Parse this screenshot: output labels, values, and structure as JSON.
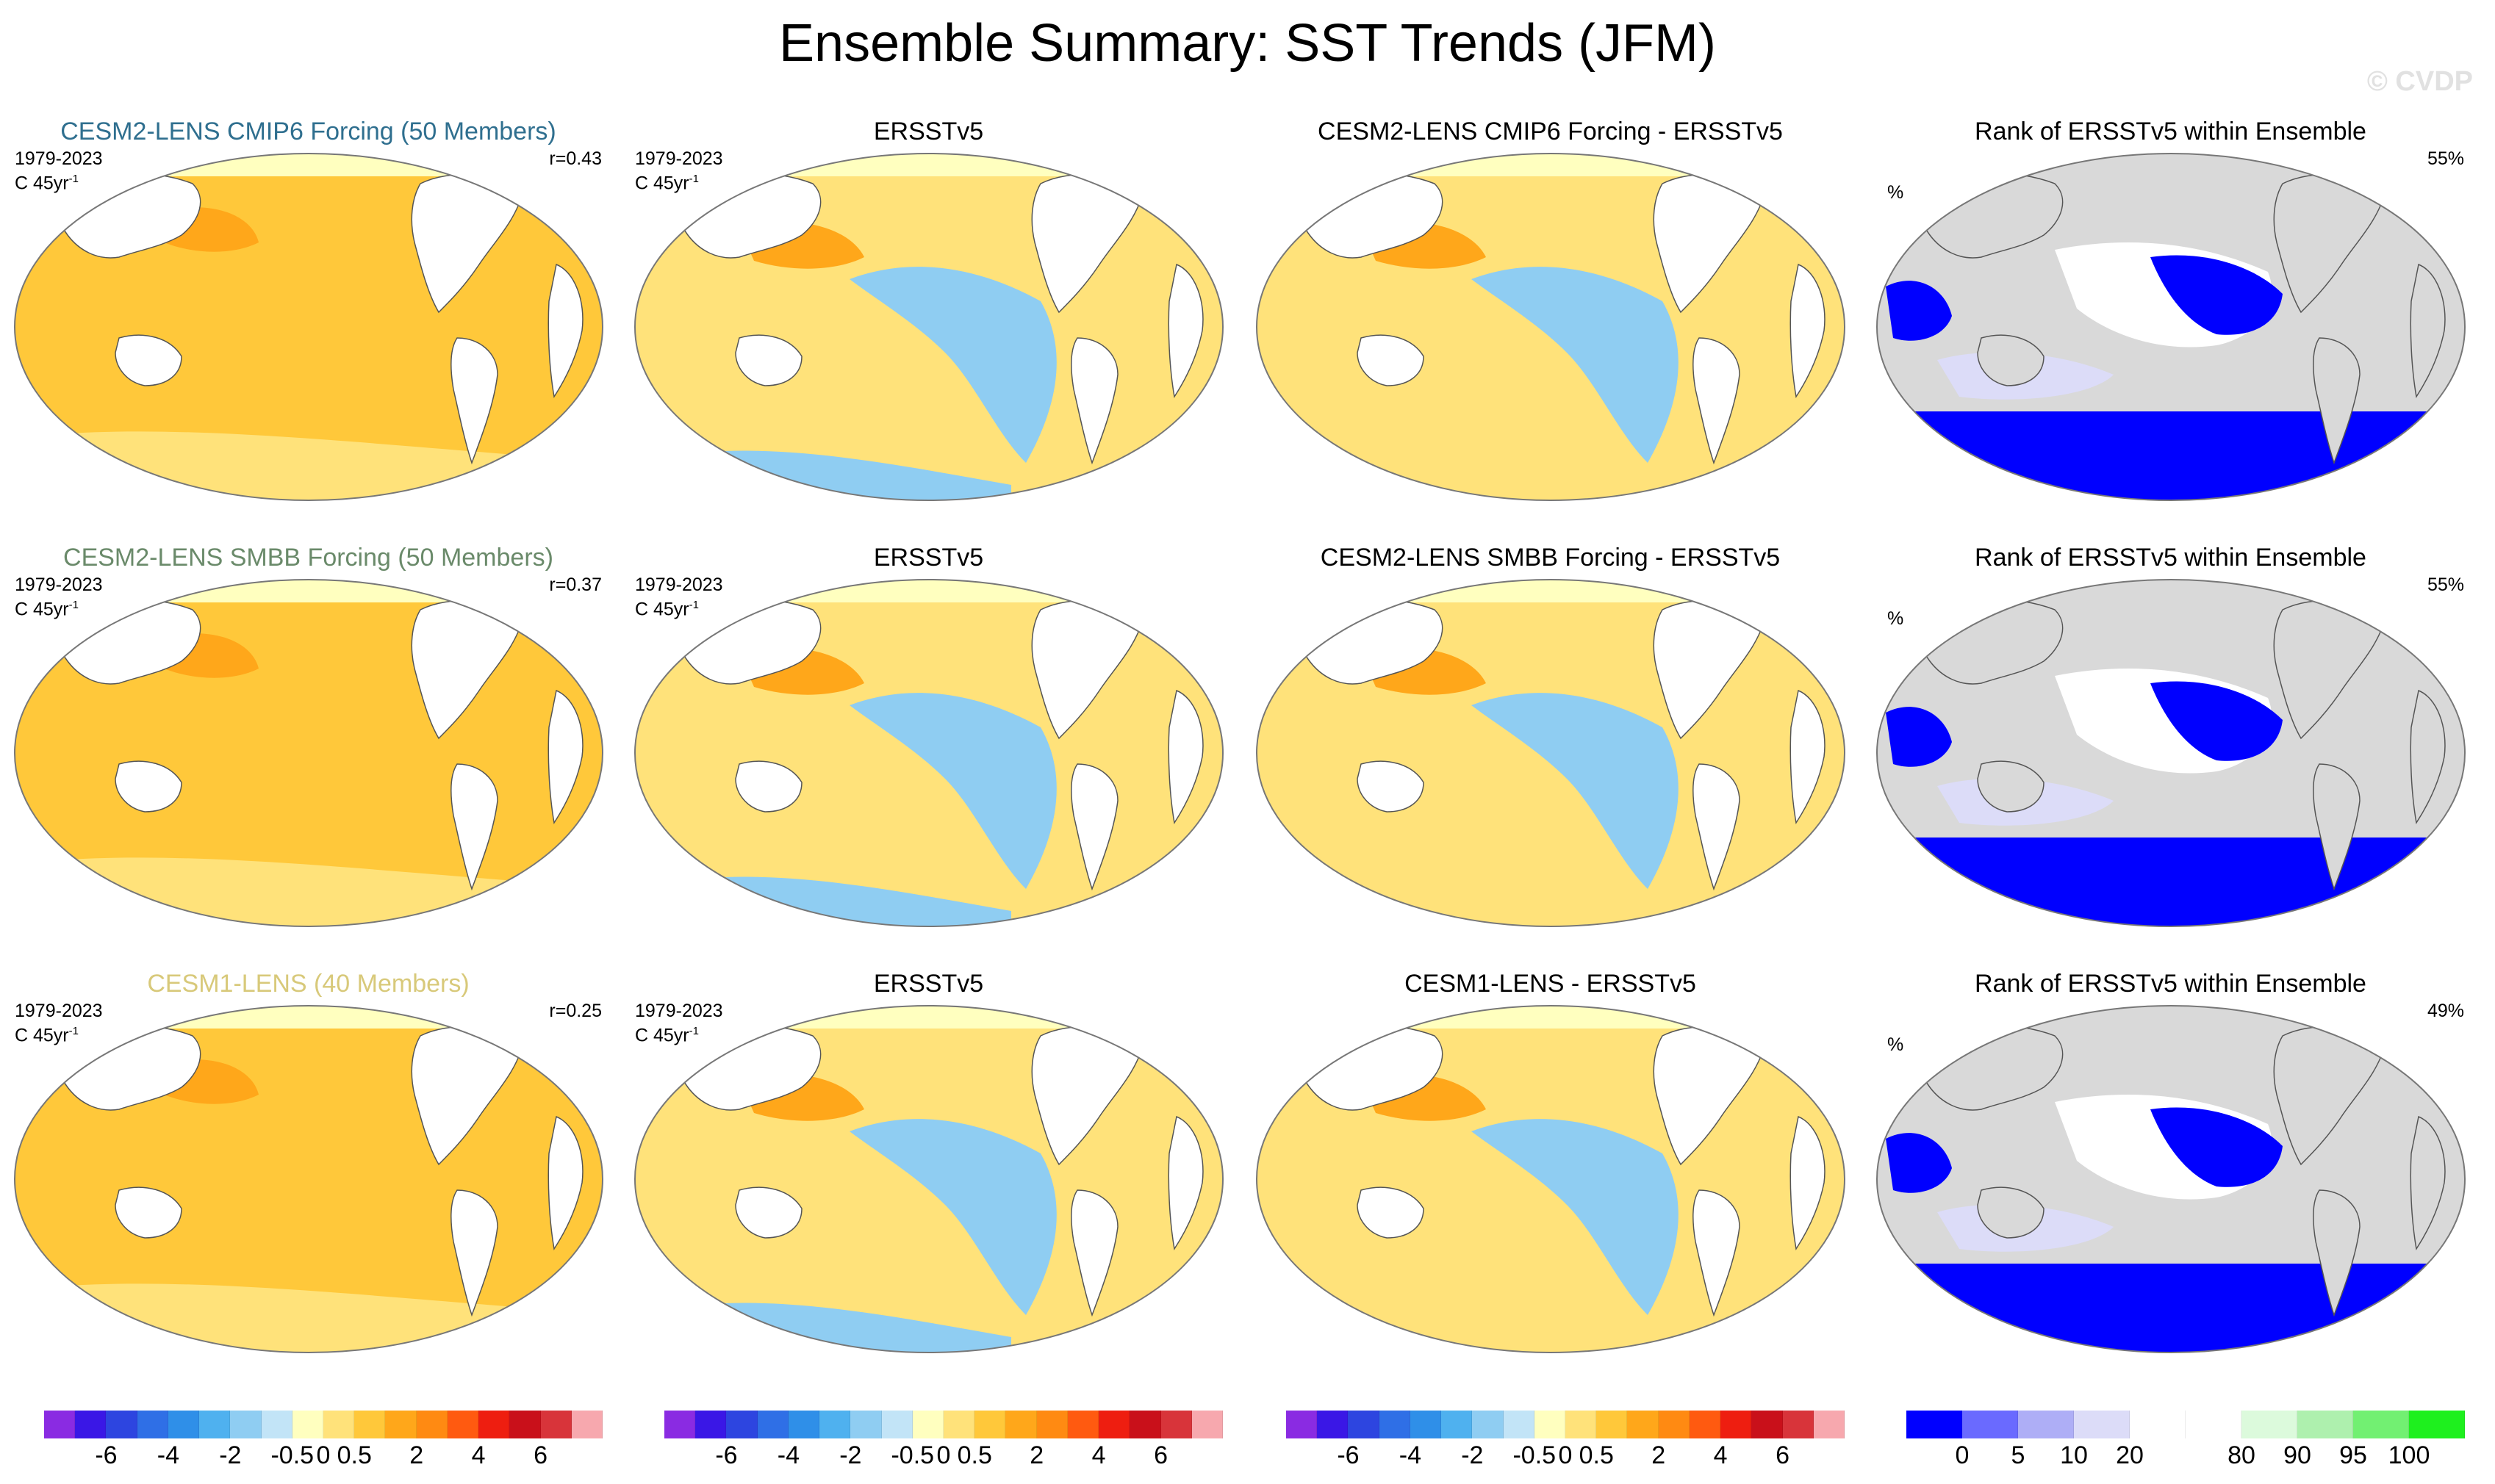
{
  "title": "Ensemble Summary: SST Trends (JFM)",
  "watermark": "© CVDP",
  "chart_data": [
    {
      "type": "heatmap",
      "title": "CESM2-LENS CMIP6 Forcing (50 Members)",
      "title_color": "#2f6f8f",
      "period": "1979-2023",
      "units": "C 45yr",
      "units_exp": "-1",
      "stat": "r=0.43",
      "fill": "ensemble",
      "colorbar": "trend"
    },
    {
      "type": "heatmap",
      "title": "ERSSTv5",
      "title_color": "#000000",
      "period": "1979-2023",
      "units": "C 45yr",
      "units_exp": "-1",
      "stat": "",
      "fill": "obs",
      "colorbar": "trend"
    },
    {
      "type": "heatmap",
      "title": "CESM2-LENS CMIP6 Forcing - ERSSTv5",
      "title_color": "#000000",
      "period": "",
      "units": "",
      "units_exp": "",
      "stat": "",
      "fill": "diff",
      "colorbar": "trend"
    },
    {
      "type": "heatmap",
      "title": "Rank of ERSSTv5 within Ensemble",
      "title_color": "#000000",
      "period": "",
      "units": "",
      "units_exp": "",
      "pct_label": "%",
      "stat": "55%",
      "fill": "rank",
      "colorbar": "rank"
    },
    {
      "type": "heatmap",
      "title": "CESM2-LENS SMBB Forcing (50 Members)",
      "title_color": "#6a8a6a",
      "period": "1979-2023",
      "units": "C 45yr",
      "units_exp": "-1",
      "stat": "r=0.37",
      "fill": "ensemble",
      "colorbar": "trend"
    },
    {
      "type": "heatmap",
      "title": "ERSSTv5",
      "title_color": "#000000",
      "period": "1979-2023",
      "units": "C 45yr",
      "units_exp": "-1",
      "stat": "",
      "fill": "obs",
      "colorbar": "trend"
    },
    {
      "type": "heatmap",
      "title": "CESM2-LENS SMBB Forcing - ERSSTv5",
      "title_color": "#000000",
      "period": "",
      "units": "",
      "units_exp": "",
      "stat": "",
      "fill": "diff",
      "colorbar": "trend"
    },
    {
      "type": "heatmap",
      "title": "Rank of ERSSTv5 within Ensemble",
      "title_color": "#000000",
      "period": "",
      "units": "",
      "units_exp": "",
      "pct_label": "%",
      "stat": "55%",
      "fill": "rank",
      "colorbar": "rank"
    },
    {
      "type": "heatmap",
      "title": "CESM1-LENS (40 Members)",
      "title_color": "#d8c97a",
      "period": "1979-2023",
      "units": "C 45yr",
      "units_exp": "-1",
      "stat": "r=0.25",
      "fill": "ensemble",
      "colorbar": "trend"
    },
    {
      "type": "heatmap",
      "title": "ERSSTv5",
      "title_color": "#000000",
      "period": "1979-2023",
      "units": "C 45yr",
      "units_exp": "-1",
      "stat": "",
      "fill": "obs",
      "colorbar": "trend"
    },
    {
      "type": "heatmap",
      "title": "CESM1-LENS - ERSSTv5",
      "title_color": "#000000",
      "period": "",
      "units": "",
      "units_exp": "",
      "stat": "",
      "fill": "diff",
      "colorbar": "trend"
    },
    {
      "type": "heatmap",
      "title": "Rank of ERSSTv5 within Ensemble",
      "title_color": "#000000",
      "period": "",
      "units": "",
      "units_exp": "",
      "pct_label": "%",
      "stat": "49%",
      "fill": "rank",
      "colorbar": "rank"
    }
  ],
  "colorbars": {
    "trend": {
      "colors": [
        "#8a2be2",
        "#3a17e6",
        "#2d45e0",
        "#2f6fe6",
        "#2f8fe8",
        "#4fb1ef",
        "#8fcdf2",
        "#c2e4f7",
        "#ffffbf",
        "#ffe27a",
        "#ffc83a",
        "#ffa71a",
        "#ff8a12",
        "#ff5a10",
        "#ee1e10",
        "#c9101a",
        "#d8343a",
        "#f7a8ae"
      ],
      "labels": [
        "-6",
        "-4",
        "-2",
        "-0.5",
        "0",
        "0.5",
        "2",
        "4",
        "6"
      ],
      "label_positions": [
        2,
        4,
        6,
        8,
        9,
        10,
        12,
        14,
        16
      ]
    },
    "rank": {
      "colors": [
        "#0000ff",
        "#6a6aff",
        "#aeaef6",
        "#dcdcf8",
        "#ffffff",
        "#ffffff",
        "#dcfadc",
        "#aef0ae",
        "#72f072",
        "#1ef01e"
      ],
      "labels": [
        "0",
        "5",
        "10",
        "20",
        "80",
        "90",
        "95",
        "100"
      ],
      "label_positions": [
        1,
        2,
        3,
        4,
        6,
        7,
        8,
        9
      ]
    }
  },
  "colors": {
    "land": "#ffffff",
    "rank_land": "#d9d9d9",
    "ocean_warm": "#ffc83a",
    "ocean_light": "#ffe27a",
    "ocean_cool": "#8fcdf2",
    "ocean_orange": "#ffa71a"
  }
}
